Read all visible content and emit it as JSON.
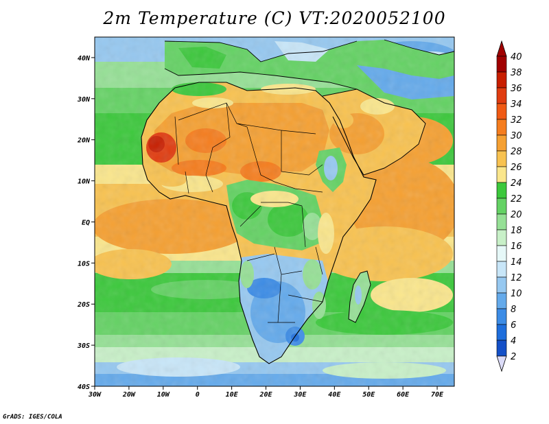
{
  "title": "2m Temperature (C) VT:2020052100",
  "credit": "GrADS: IGES/COLA",
  "map": {
    "lat_ticks": [
      "40N",
      "30N",
      "20N",
      "10N",
      "EQ",
      "10S",
      "20S",
      "30S",
      "40S"
    ],
    "lon_ticks": [
      "30W",
      "20W",
      "10W",
      "0",
      "10E",
      "20E",
      "30E",
      "40E",
      "50E",
      "60E",
      "70E"
    ],
    "lat_range": [
      -40,
      45
    ],
    "lon_range": [
      -30,
      75
    ]
  },
  "colorbar": {
    "labels": [
      "40",
      "38",
      "36",
      "34",
      "32",
      "30",
      "28",
      "26",
      "24",
      "22",
      "20",
      "18",
      "16",
      "14",
      "12",
      "10",
      "8",
      "6",
      "4",
      "2"
    ],
    "colors": [
      "#a00000",
      "#c81e00",
      "#e03c10",
      "#f05a14",
      "#f57d1e",
      "#f5a032",
      "#f8c250",
      "#fae68c",
      "#3cc83c",
      "#64d264",
      "#96e096",
      "#c8f0c8",
      "#e6f8f8",
      "#c8e6f8",
      "#96c8f0",
      "#64aaeb",
      "#3c8ce6",
      "#1e6edc",
      "#1450c8",
      "#0a1e78"
    ],
    "under_color": "#dcdcf8",
    "over_color": "#a00000"
  }
}
